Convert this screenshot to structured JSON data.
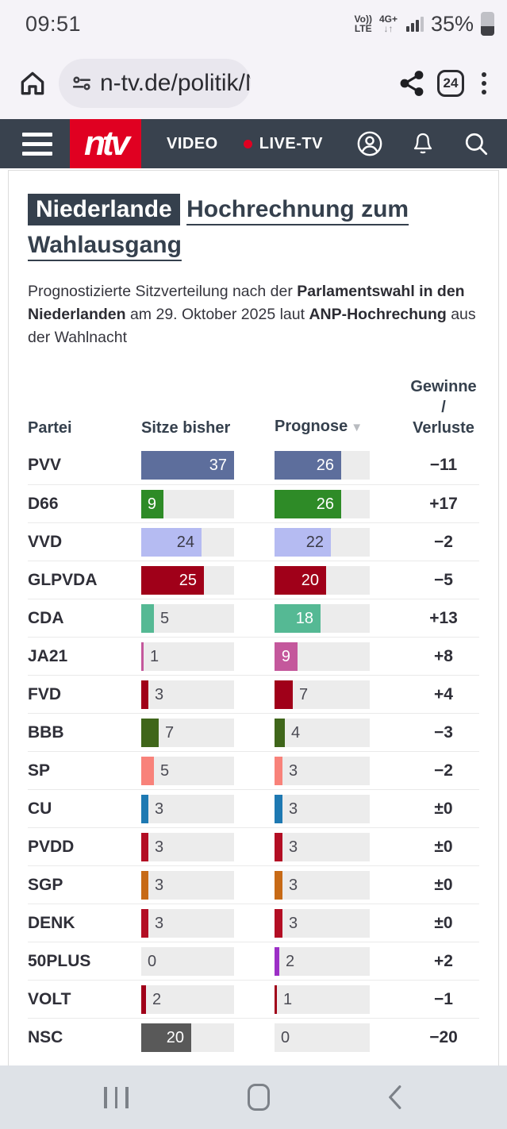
{
  "colors": {
    "brand_red": "#e00021",
    "header_bg": "#39424e",
    "slate": "#35404d",
    "system_bg": "#f5f3f8"
  },
  "status_bar": {
    "time": "09:51",
    "volte_line1": "Vo))",
    "volte_line2": "LTE",
    "net_line1": "4G+",
    "net_line2": "↓↑",
    "battery_percent": "35%"
  },
  "browser": {
    "url": "n-tv.de/politik/N",
    "tab_count": "24"
  },
  "site_header": {
    "logo_text": "ntv",
    "nav_video": "VIDEO",
    "nav_live": "LIVE-TV"
  },
  "article": {
    "kicker": "Niederlande",
    "title": "Hochrechnung zum Wahlausgang",
    "intro_parts": [
      {
        "text": "Prognostizierte Sitzverteilung nach der ",
        "bold": false
      },
      {
        "text": "Parlamentswahl in den Niederlanden",
        "bold": true
      },
      {
        "text": " am 29. Oktober 2025 laut ",
        "bold": false
      },
      {
        "text": "ANP-Hochrechung",
        "bold": true
      },
      {
        "text": " aus der Wahlnacht",
        "bold": false
      }
    ]
  },
  "table_header": {
    "col_party": "Partei",
    "col_bisher": "Sitze bisher",
    "col_prognose": "Prognose",
    "sort_icon": "▼",
    "col_change_lines": [
      "Gewinne",
      "/",
      "Verluste"
    ]
  },
  "chart_data": {
    "type": "bar",
    "title": "Niederlande Hochrechnung zum Wahlausgang",
    "subtitle": "Prognostizierte Sitzverteilung, Parlamentswahl Niederlande 29. Oktober 2025, ANP-Hochrechnung",
    "categories_label": "Partei",
    "series_labels": [
      "Sitze bisher",
      "Prognose"
    ],
    "change_label": "Gewinne / Verluste",
    "max_seats": 37,
    "sorted_by": "Prognose absteigend",
    "rows": [
      {
        "party": "PVV",
        "bisher": 37,
        "prognose": 26,
        "change": "−11",
        "color": "#5d6e9c",
        "inside_text": "#ffffff"
      },
      {
        "party": "D66",
        "bisher": 9,
        "prognose": 26,
        "change": "+17",
        "color": "#2e8b27",
        "inside_text": "#ffffff"
      },
      {
        "party": "VVD",
        "bisher": 24,
        "prognose": 22,
        "change": "−2",
        "color": "#b5bbf2",
        "inside_text": "#3a3a46"
      },
      {
        "party": "GLPVDA",
        "bisher": 25,
        "prognose": 20,
        "change": "−5",
        "color": "#a00019",
        "inside_text": "#ffffff"
      },
      {
        "party": "CDA",
        "bisher": 5,
        "prognose": 18,
        "change": "+13",
        "color": "#55b994",
        "inside_text": "#ffffff"
      },
      {
        "party": "JA21",
        "bisher": 1,
        "prognose": 9,
        "change": "+8",
        "color": "#c4589c",
        "inside_text": "#ffffff"
      },
      {
        "party": "FVD",
        "bisher": 3,
        "prognose": 7,
        "change": "+4",
        "color": "#a00019",
        "inside_text": "#ffffff"
      },
      {
        "party": "BBB",
        "bisher": 7,
        "prognose": 4,
        "change": "−3",
        "color": "#3f661a",
        "inside_text": "#ffffff"
      },
      {
        "party": "SP",
        "bisher": 5,
        "prognose": 3,
        "change": "−2",
        "color": "#f8827a",
        "inside_text": "#ffffff"
      },
      {
        "party": "CU",
        "bisher": 3,
        "prognose": 3,
        "change": "±0",
        "color": "#1e79b2",
        "inside_text": "#ffffff"
      },
      {
        "party": "PVDD",
        "bisher": 3,
        "prognose": 3,
        "change": "±0",
        "color": "#b30e24",
        "inside_text": "#ffffff"
      },
      {
        "party": "SGP",
        "bisher": 3,
        "prognose": 3,
        "change": "±0",
        "color": "#c76a16",
        "inside_text": "#ffffff"
      },
      {
        "party": "DENK",
        "bisher": 3,
        "prognose": 3,
        "change": "±0",
        "color": "#b30e24",
        "inside_text": "#ffffff"
      },
      {
        "party": "50PLUS",
        "bisher": 0,
        "prognose": 2,
        "change": "+2",
        "color": "#9c2fc6",
        "inside_text": "#ffffff"
      },
      {
        "party": "VOLT",
        "bisher": 2,
        "prognose": 1,
        "change": "−1",
        "color": "#a00019",
        "inside_text": "#ffffff"
      },
      {
        "party": "NSC",
        "bisher": 20,
        "prognose": 0,
        "change": "−20",
        "color": "#595959",
        "inside_text": "#ffffff"
      }
    ]
  }
}
